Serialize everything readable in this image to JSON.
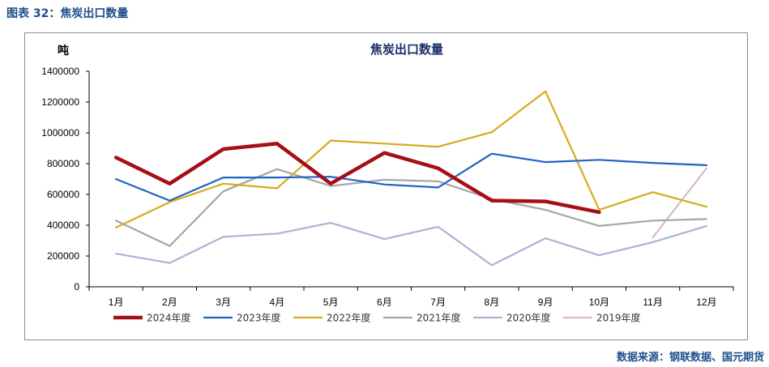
{
  "caption": "图表 32：焦炭出口数量",
  "source": "数据来源：钢联数据、国元期货",
  "chart_data": {
    "type": "line",
    "title": "焦炭出口数量",
    "ylabel": "吨",
    "categories": [
      "1月",
      "2月",
      "3月",
      "4月",
      "5月",
      "6月",
      "7月",
      "8月",
      "9月",
      "10月",
      "11月",
      "12月"
    ],
    "ylim": [
      0,
      1400000
    ],
    "yticks": [
      "0",
      "200000",
      "400000",
      "600000",
      "800000",
      "1000000",
      "1200000",
      "1400000"
    ],
    "legend_position": "bottom",
    "grid": false,
    "series": [
      {
        "name": "2024年度",
        "color": "#a50f15",
        "values": [
          840000,
          670000,
          895000,
          930000,
          670000,
          870000,
          770000,
          560000,
          555000,
          485000,
          null,
          null
        ]
      },
      {
        "name": "2023年度",
        "color": "#1f63c6",
        "values": [
          700000,
          560000,
          710000,
          710000,
          715000,
          665000,
          645000,
          865000,
          810000,
          825000,
          805000,
          790000
        ]
      },
      {
        "name": "2022年度",
        "color": "#d4ac1c",
        "values": [
          385000,
          550000,
          670000,
          640000,
          950000,
          930000,
          910000,
          1005000,
          1270000,
          500000,
          615000,
          520000
        ]
      },
      {
        "name": "2021年度",
        "color": "#a6a6a6",
        "values": [
          430000,
          265000,
          620000,
          765000,
          655000,
          695000,
          685000,
          570000,
          500000,
          395000,
          430000,
          440000
        ]
      },
      {
        "name": "2020年度",
        "color": "#aab4d4",
        "values": [
          215000,
          155000,
          325000,
          345000,
          415000,
          310000,
          390000,
          140000,
          315000,
          205000,
          290000,
          395000
        ]
      },
      {
        "name": "2019年度",
        "color": "#d8bcc0",
        "values": [
          null,
          null,
          null,
          null,
          null,
          null,
          null,
          null,
          null,
          null,
          320000,
          770000
        ]
      }
    ]
  }
}
